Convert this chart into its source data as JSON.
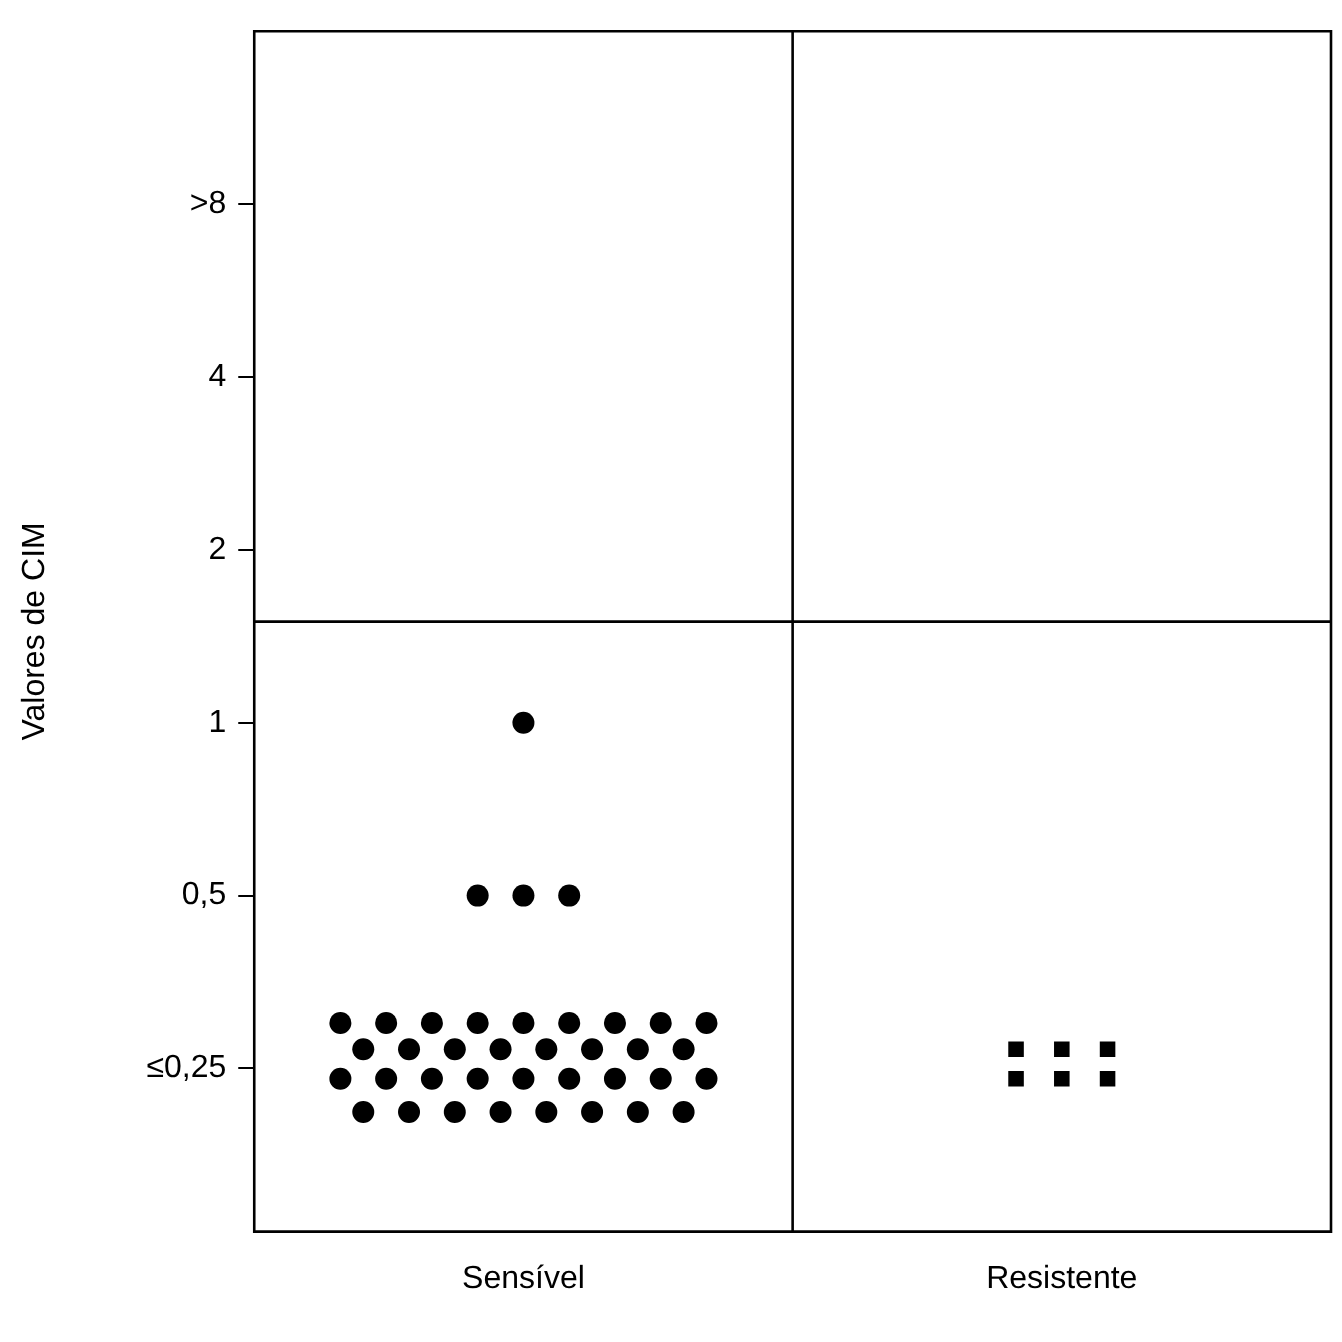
{
  "chart_data": {
    "type": "scatter",
    "ylabel": "Valores de CIM",
    "categories": [
      "Sensível",
      "Resistente"
    ],
    "log": true,
    "ylim": [
      0.13,
      16
    ],
    "yticks": [
      {
        "value": 0.25,
        "label": "≤0,25"
      },
      {
        "value": 0.5,
        "label": "0,5"
      },
      1,
      2,
      4,
      {
        "value": 8,
        "label": ">8"
      }
    ],
    "grid": "x",
    "legend": false,
    "ref_lines": [
      {
        "axis": "y",
        "value": 1.5,
        "color": "#000000"
      }
    ],
    "series": [
      {
        "color": "#000000",
        "marker": "circle",
        "x": [
          "Sensível",
          "Sensível",
          "Sensível",
          "Sensível",
          "Sensível",
          "Sensível",
          "Sensível",
          "Sensível",
          "Sensível",
          "Sensível",
          "Sensível",
          "Sensível",
          "Sensível",
          "Sensível",
          "Sensível",
          "Sensível",
          "Sensível",
          "Sensível",
          "Sensível",
          "Sensível",
          "Sensível",
          "Sensível",
          "Sensível",
          "Sensível",
          "Sensível",
          "Sensível",
          "Sensível",
          "Sensível",
          "Sensível",
          "Sensível",
          "Sensível",
          "Sensível",
          "Sensível",
          "Sensível",
          "Sensível",
          "Sensível",
          "Sensível",
          "Sensível"
        ],
        "values": [
          1,
          0.5,
          0.5,
          0.5,
          0.3,
          0.3,
          0.3,
          0.3,
          0.3,
          0.3,
          0.3,
          0.3,
          0.3,
          0.27,
          0.27,
          0.27,
          0.27,
          0.27,
          0.27,
          0.27,
          0.27,
          0.24,
          0.24,
          0.24,
          0.24,
          0.24,
          0.24,
          0.24,
          0.24,
          0.24,
          0.21,
          0.21,
          0.21,
          0.21,
          0.21,
          0.21,
          0.21,
          0.21
        ]
      },
      {
        "color": "#000000",
        "marker": "square",
        "x": [
          "Resistente",
          "Resistente",
          "Resistente",
          "Resistente",
          "Resistente",
          "Resistente"
        ],
        "values": [
          0.27,
          0.27,
          0.27,
          0.24,
          0.24,
          0.24
        ]
      }
    ]
  }
}
